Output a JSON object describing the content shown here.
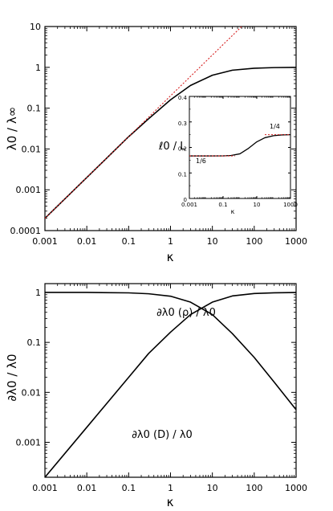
{
  "chart_data": [
    {
      "type": "line",
      "panel": "top",
      "xlabel": "κ",
      "ylabel": "λ0 / λ∞",
      "xscale": "log",
      "yscale": "log",
      "xlim": [
        0.001,
        1000
      ],
      "ylim": [
        0.0001,
        10
      ],
      "xticks": [
        "0.001",
        "0.01",
        "0.1",
        "1",
        "10",
        "100",
        "1000"
      ],
      "yticks": [
        "0.0001",
        "0.001",
        "0.01",
        "0.1",
        "1",
        "10"
      ],
      "series": [
        {
          "style": "solid",
          "color": "#000000",
          "x": [
            0.001,
            0.01,
            0.1,
            0.3,
            1,
            3,
            10,
            30,
            100,
            300,
            1000
          ],
          "y": [
            0.0002,
            0.002,
            0.02,
            0.055,
            0.16,
            0.36,
            0.64,
            0.85,
            0.95,
            0.985,
            1.0
          ]
        },
        {
          "style": "dotted",
          "color": "#d62020",
          "x": [
            0.001,
            50
          ],
          "y": [
            0.0002,
            10
          ]
        }
      ]
    },
    {
      "type": "line",
      "panel": "top-inset",
      "xlabel": "κ",
      "ylabel": "ℓ0 / L",
      "xscale": "log",
      "xlim": [
        0.001,
        1000
      ],
      "ylim": [
        0,
        0.4
      ],
      "xticks": [
        "0.001",
        "0.1",
        "10",
        "1000"
      ],
      "yticks": [
        "0",
        "0.1",
        "0.2",
        "0.3",
        "0.4"
      ],
      "annotations": [
        "1/6",
        "1/4"
      ],
      "series": [
        {
          "style": "solid",
          "color": "#000000",
          "x": [
            0.001,
            0.01,
            0.1,
            0.3,
            1,
            3,
            10,
            30,
            100,
            300,
            1000
          ],
          "y": [
            0.1667,
            0.1667,
            0.1669,
            0.1685,
            0.175,
            0.195,
            0.222,
            0.238,
            0.246,
            0.249,
            0.25
          ]
        },
        {
          "style": "dotted",
          "color": "#d62020",
          "x": [
            0.001,
            0.5
          ],
          "y": [
            0.1667,
            0.1667
          ]
        },
        {
          "style": "dotted",
          "color": "#d62020",
          "x": [
            30,
            1000
          ],
          "y": [
            0.25,
            0.25
          ]
        }
      ]
    },
    {
      "type": "line",
      "panel": "bottom",
      "xlabel": "κ",
      "ylabel": "∂λ0 / λ0",
      "xscale": "log",
      "yscale": "log",
      "xlim": [
        0.001,
        1000
      ],
      "ylim": [
        0.0002,
        1.5
      ],
      "xticks": [
        "0.001",
        "0.01",
        "0.1",
        "1",
        "10",
        "100",
        "1000"
      ],
      "yticks": [
        "0.001",
        "0.01",
        "0.1",
        "1"
      ],
      "annotations": [
        "∂λ0 (ρ) / λ0",
        "∂λ0 (D) / λ0"
      ],
      "series": [
        {
          "name": "∂λ0 (ρ) / λ0",
          "style": "solid",
          "color": "#000000",
          "x": [
            0.001,
            0.01,
            0.1,
            0.3,
            1,
            3,
            10,
            30,
            100,
            300,
            1000
          ],
          "y": [
            1.0,
            1.0,
            0.98,
            0.94,
            0.84,
            0.64,
            0.36,
            0.15,
            0.05,
            0.016,
            0.0045
          ]
        },
        {
          "name": "∂λ0 (D) / λ0",
          "style": "solid",
          "color": "#000000",
          "x": [
            0.001,
            0.01,
            0.1,
            0.3,
            1,
            3,
            10,
            30,
            100,
            300,
            1000
          ],
          "y": [
            0.0002,
            0.002,
            0.02,
            0.06,
            0.16,
            0.36,
            0.64,
            0.85,
            0.95,
            0.984,
            0.995
          ]
        }
      ]
    }
  ]
}
